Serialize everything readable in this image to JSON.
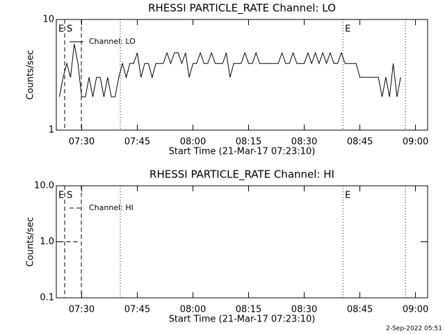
{
  "chart_data": [
    {
      "type": "line",
      "title": "RHESSI PARTICLE_RATE Channel: LO",
      "xlabel": "Start Time (21-Mar-17 07:23:10)",
      "ylabel": "Counts/sec",
      "log_y": true,
      "ylim": [
        1,
        10
      ],
      "yticks": [
        1,
        10
      ],
      "xlim": [
        "07:23:10",
        "09:03:16"
      ],
      "xticks": [
        "07:30",
        "07:45",
        "08:00",
        "08:15",
        "08:30",
        "08:45",
        "09:00"
      ],
      "x": [
        "07:24",
        "07:25",
        "07:26",
        "07:27",
        "07:28",
        "07:29",
        "07:30",
        "07:31",
        "07:32",
        "07:33",
        "07:34",
        "07:35",
        "07:36",
        "07:37",
        "07:38",
        "07:39",
        "07:40",
        "07:41",
        "07:42",
        "07:43",
        "07:44",
        "07:45",
        "07:46",
        "07:47",
        "07:48",
        "07:49",
        "07:50",
        "07:51",
        "07:52",
        "07:53",
        "07:54",
        "07:55",
        "07:56",
        "07:57",
        "07:58",
        "07:59",
        "08:00",
        "08:01",
        "08:02",
        "08:03",
        "08:04",
        "08:05",
        "08:06",
        "08:07",
        "08:08",
        "08:09",
        "08:10",
        "08:11",
        "08:12",
        "08:13",
        "08:14",
        "08:15",
        "08:16",
        "08:17",
        "08:18",
        "08:19",
        "08:20",
        "08:21",
        "08:22",
        "08:23",
        "08:24",
        "08:25",
        "08:26",
        "08:27",
        "08:28",
        "08:29",
        "08:30",
        "08:31",
        "08:32",
        "08:33",
        "08:34",
        "08:35",
        "08:36",
        "08:37",
        "08:38",
        "08:39",
        "08:40",
        "08:41",
        "08:42",
        "08:43",
        "08:44",
        "08:45",
        "08:46",
        "08:47",
        "08:48",
        "08:49",
        "08:50",
        "08:51",
        "08:52",
        "08:53",
        "08:54",
        "08:55",
        "08:56"
      ],
      "series": [
        {
          "name": "Channel: LO",
          "color": "#000000",
          "line_style": "solid",
          "values": [
            2,
            3,
            4,
            3,
            6,
            4,
            2,
            2,
            3,
            2,
            3,
            3,
            2,
            3,
            2,
            2,
            3,
            4,
            3,
            4,
            4,
            5,
            3,
            4,
            4,
            3,
            4,
            4,
            4,
            5,
            4,
            5,
            5,
            4,
            5,
            3,
            4,
            4,
            5,
            4,
            4,
            5,
            4,
            4,
            4,
            5,
            3,
            4,
            4,
            4,
            5,
            4,
            4,
            5,
            4,
            4,
            4,
            4,
            4,
            4,
            5,
            4,
            4,
            5,
            4,
            4,
            4,
            5,
            4,
            5,
            4,
            5,
            4,
            5,
            4,
            4,
            5,
            4,
            4,
            4,
            4,
            3,
            3,
            3,
            3,
            3,
            3,
            2,
            3,
            2,
            4,
            2,
            3
          ]
        }
      ],
      "markers": [
        {
          "time": "07:25:25",
          "style": "dashed"
        },
        {
          "time": "07:29:55",
          "style": "dashed"
        },
        {
          "time": "07:40:25",
          "style": "dotted"
        },
        {
          "time": "08:40:25",
          "style": "dotted"
        },
        {
          "time": "08:57:18",
          "style": "dotted"
        }
      ],
      "annotations": [
        "E",
        "S",
        "E"
      ]
    },
    {
      "type": "line",
      "title": "RHESSI PARTICLE_RATE Channel: HI",
      "xlabel": "Start Time (21-Mar-17 07:23:10)",
      "ylabel": "Counts/sec",
      "log_y": true,
      "ylim": [
        0.1,
        10
      ],
      "yticks": [
        0.1,
        {
          "value": 1,
          "label": "1.0"
        },
        {
          "value": 10,
          "label": "10.0"
        }
      ],
      "xlim": [
        "07:23:10",
        "09:03:16"
      ],
      "xticks": [
        "07:30",
        "07:45",
        "08:00",
        "08:15",
        "08:30",
        "08:45",
        "09:00"
      ],
      "x": [
        "07:24",
        "07:25",
        "07:26",
        "07:27",
        "07:28",
        "07:29"
      ],
      "series": [
        {
          "name": "Channel: HI",
          "color": "#000000",
          "line_style": "dashed",
          "values": [
            1,
            1,
            1,
            1,
            1,
            1
          ]
        }
      ],
      "markers": [
        {
          "time": "07:25:25",
          "style": "dashed"
        },
        {
          "time": "07:29:55",
          "style": "dashed"
        },
        {
          "time": "07:40:25",
          "style": "dotted"
        },
        {
          "time": "08:40:25",
          "style": "dotted"
        },
        {
          "time": "08:57:18",
          "style": "dotted"
        }
      ],
      "annotations": [
        "E",
        "S",
        "E"
      ]
    }
  ],
  "footer": "2-Sep-2022 05:51"
}
